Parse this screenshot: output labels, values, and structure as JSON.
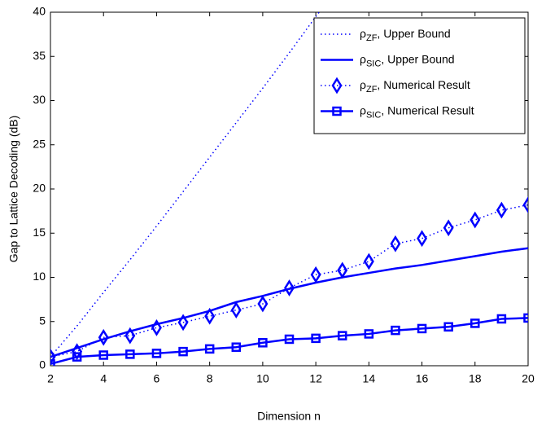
{
  "chart_data": {
    "type": "line",
    "xlabel": "Dimension n",
    "ylabel": "Gap to Lattice Decoding (dB)",
    "x": [
      2,
      3,
      4,
      5,
      6,
      7,
      8,
      9,
      10,
      11,
      12,
      13,
      14,
      15,
      16,
      17,
      18,
      19,
      20
    ],
    "xlim": [
      2,
      20
    ],
    "xticks": [
      2,
      4,
      6,
      8,
      10,
      12,
      14,
      16,
      18,
      20
    ],
    "ylim": [
      0,
      40
    ],
    "yticks": [
      0,
      5,
      10,
      15,
      20,
      25,
      30,
      35,
      40
    ],
    "grid": false,
    "legend": "northeast",
    "series": [
      {
        "name": [
          "ρ",
          "ZF",
          ", Upper Bound"
        ],
        "color": "#0000ff",
        "linestyle": "dotted",
        "marker": "none",
        "values": [
          1.0,
          4.5,
          8.3,
          12.0,
          15.8,
          19.7,
          23.6,
          27.5,
          31.4,
          35.4,
          39.5,
          43.5,
          null,
          null,
          null,
          null,
          null,
          null,
          null
        ]
      },
      {
        "name": [
          "ρ",
          "SIC",
          ", Upper Bound"
        ],
        "color": "#0000ff",
        "linestyle": "solid",
        "marker": "none",
        "values": [
          1.0,
          2.0,
          3.0,
          3.9,
          4.7,
          5.4,
          6.2,
          7.2,
          7.9,
          8.7,
          9.4,
          10.0,
          10.5,
          11.0,
          11.4,
          11.9,
          12.4,
          12.9,
          13.3
        ]
      },
      {
        "name": [
          "ρ",
          "ZF",
          ", Numerical Result"
        ],
        "color": "#0000ff",
        "linestyle": "dotted",
        "marker": "diamond",
        "values": [
          1.0,
          1.6,
          3.2,
          3.4,
          4.3,
          4.9,
          5.6,
          6.3,
          7.0,
          8.8,
          10.3,
          10.8,
          11.8,
          13.8,
          14.4,
          15.6,
          16.5,
          17.6,
          18.2
        ]
      },
      {
        "name": [
          "ρ",
          "SIC",
          ", Numerical Result"
        ],
        "color": "#0000ff",
        "linestyle": "solid",
        "marker": "square",
        "values": [
          0.2,
          1.0,
          1.2,
          1.3,
          1.4,
          1.6,
          1.9,
          2.1,
          2.6,
          3.0,
          3.1,
          3.4,
          3.6,
          4.0,
          4.2,
          4.4,
          4.8,
          5.3,
          5.4
        ]
      }
    ]
  }
}
